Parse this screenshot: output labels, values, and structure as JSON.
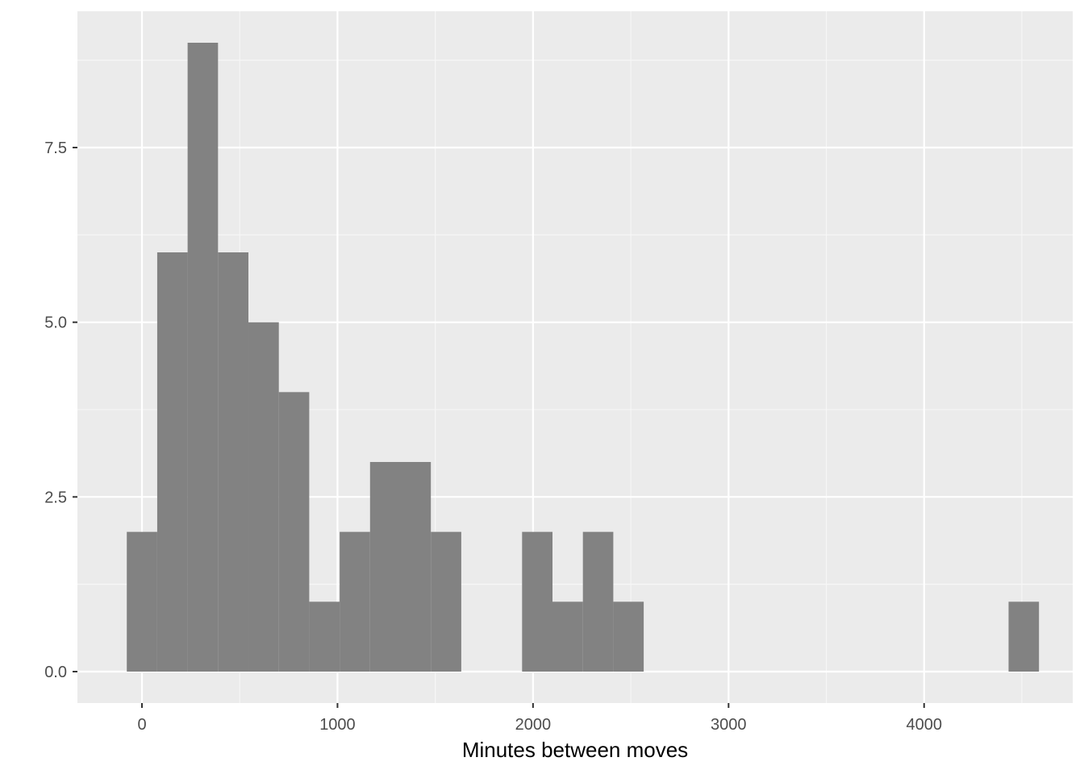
{
  "chart_data": {
    "type": "bar",
    "subtype": "histogram",
    "title": "",
    "xlabel": "Minutes between moves",
    "ylabel": "",
    "xlim": [
      -330,
      4760
    ],
    "ylim": [
      -0.45,
      9.45
    ],
    "x_ticks": [
      {
        "value": 0,
        "label": "0"
      },
      {
        "value": 1000,
        "label": "1000"
      },
      {
        "value": 2000,
        "label": "2000"
      },
      {
        "value": 3000,
        "label": "3000"
      },
      {
        "value": 4000,
        "label": "4000"
      }
    ],
    "x_minor_ticks": [
      500,
      1500,
      2500,
      3500,
      4500
    ],
    "y_ticks": [
      {
        "value": 0.0,
        "label": "0.0"
      },
      {
        "value": 2.5,
        "label": "2.5"
      },
      {
        "value": 5.0,
        "label": "5.0"
      },
      {
        "value": 7.5,
        "label": "7.5"
      }
    ],
    "y_minor_ticks": [
      1.25,
      3.75,
      6.25,
      8.75
    ],
    "grid": true,
    "bin_width": 155.5,
    "bins": [
      {
        "x0": -77.5,
        "x1": 78.0,
        "count": 2
      },
      {
        "x0": 78.0,
        "x1": 233.5,
        "count": 6
      },
      {
        "x0": 233.5,
        "x1": 389.0,
        "count": 9
      },
      {
        "x0": 389.0,
        "x1": 544.5,
        "count": 6
      },
      {
        "x0": 544.5,
        "x1": 700.0,
        "count": 5
      },
      {
        "x0": 700.0,
        "x1": 855.5,
        "count": 4
      },
      {
        "x0": 855.5,
        "x1": 1011.0,
        "count": 1
      },
      {
        "x0": 1011.0,
        "x1": 1166.5,
        "count": 2
      },
      {
        "x0": 1166.5,
        "x1": 1322.0,
        "count": 3
      },
      {
        "x0": 1322.0,
        "x1": 1477.5,
        "count": 3
      },
      {
        "x0": 1477.5,
        "x1": 1633.0,
        "count": 2
      },
      {
        "x0": 1944.0,
        "x1": 2099.5,
        "count": 2
      },
      {
        "x0": 2099.5,
        "x1": 2255.0,
        "count": 1
      },
      {
        "x0": 2255.0,
        "x1": 2410.5,
        "count": 2
      },
      {
        "x0": 2410.5,
        "x1": 2566.0,
        "count": 1
      },
      {
        "x0": 4432.0,
        "x1": 4587.5,
        "count": 1
      }
    ],
    "colors": {
      "panel_background": "#ebebeb",
      "grid_major": "#ffffff",
      "grid_minor": "#f7f7f7",
      "bar_fill": "#7f7f7f",
      "tick_mark": "#333333"
    }
  }
}
